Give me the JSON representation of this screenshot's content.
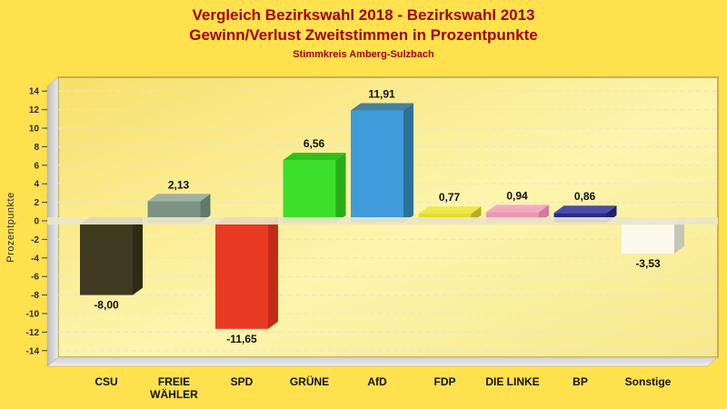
{
  "colors": {
    "page_background": "#FFE14D",
    "title_text": "#A40000",
    "axis_text": "#26264E",
    "tick_mark": "#3A3A52",
    "category_text": "#111111",
    "value_label_text": "#111111",
    "plot_gradient_start": "#F7E06A",
    "plot_gradient_mid": "#FDF5AE",
    "plot_gradient_end": "#F7E88A",
    "plot_border": "#AF9F4F",
    "wall_dark": "#BDBDBD",
    "wall_light": "#ECECEC",
    "floor_dark": "#D2D2D2",
    "floor_light": "#F0F0F0",
    "gridline": "#E8E4D0",
    "zero_ribbon": "#EAE6C8"
  },
  "chart_data": {
    "type": "bar",
    "title": "Vergleich Bezirkswahl 2018 - Bezirkswahl 2013",
    "subtitle": "Gewinn/Verlust Zweitstimmen in Prozentpunkte",
    "region": "Stimmkreis Amberg-Sulzbach",
    "xlabel": "",
    "ylabel": "Prozentpunkte",
    "ylim": [
      -15,
      15
    ],
    "ytick_min": -14,
    "ytick_max": 14,
    "ytick_step": 2,
    "grid": "dashed-horizontal",
    "legend": "none",
    "style": "3d-bars",
    "decimal_separator": ",",
    "categories": [
      "CSU",
      "FREIE WÄHLER",
      "SPD",
      "GRÜNE",
      "AfD",
      "FDP",
      "DIE LINKE",
      "BP",
      "Sonstige"
    ],
    "category_lines": [
      [
        "CSU"
      ],
      [
        "FREIE",
        "WÄHLER"
      ],
      [
        "SPD"
      ],
      [
        "GRÜNE"
      ],
      [
        "AfD"
      ],
      [
        "FDP"
      ],
      [
        "DIE LINKE"
      ],
      [
        "BP"
      ],
      [
        "Sonstige"
      ]
    ],
    "values": [
      -8.0,
      2.13,
      -11.65,
      6.56,
      11.91,
      0.77,
      0.94,
      0.86,
      -3.53
    ],
    "value_labels": [
      "-8,00",
      "2,13",
      "-11,65",
      "6,56",
      "11,91",
      "0,77",
      "0,94",
      "0,86",
      "-3,53"
    ],
    "bar_face_colors": [
      "#3E3A20",
      "#7C9383",
      "#E83A22",
      "#3BE02A",
      "#3F9BDC",
      "#E2DB26",
      "#EE93B4",
      "#29298A",
      "#FAF9EC"
    ],
    "bar_top_colors": [
      "#4A4626",
      "#9EB2A2",
      "#EB5A42",
      "#2EC01C",
      "#45809F",
      "#ECE64E",
      "#F3A9C4",
      "#4C4CA4",
      "#FFFFFE"
    ],
    "bar_side_colors": [
      "#2E2B15",
      "#5E7A6C",
      "#C22C16",
      "#28AC18",
      "#2D7195",
      "#B5AF1E",
      "#D3799D",
      "#202070",
      "#C6C5BA"
    ]
  }
}
